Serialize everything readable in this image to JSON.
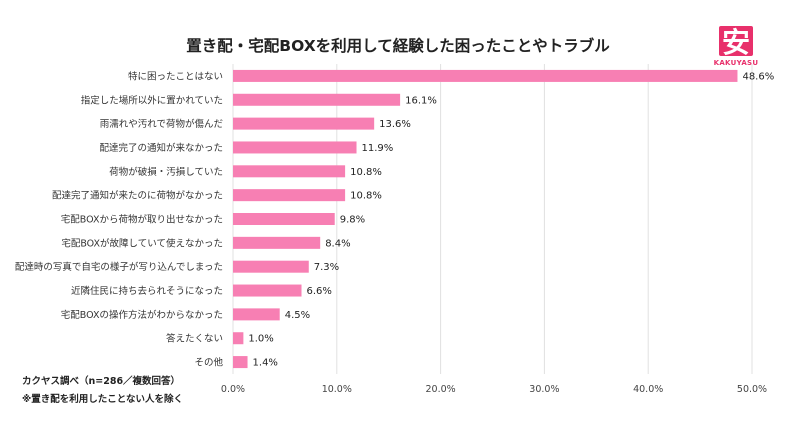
{
  "logo": {
    "kanji": "安",
    "text": "KAKUYASU"
  },
  "footnotes": {
    "source": "カクヤス調べ（n=286／複数回答）",
    "note": "※置き配を利用したことない人を除く"
  },
  "colors": {
    "bar": "#f77fb3",
    "grid": "#e0e0e0",
    "brand": "#e8306b"
  },
  "chart_data": {
    "type": "bar",
    "orientation": "horizontal",
    "title": "置き配・宅配BOXを利用して経験した困ったことやトラブル",
    "xlabel": "",
    "ylabel": "",
    "xlim": [
      0,
      50
    ],
    "grid": true,
    "ticks": [
      "0.0%",
      "10.0%",
      "20.0%",
      "30.0%",
      "40.0%",
      "50.0%"
    ],
    "categories": [
      "特に困ったことはない",
      "指定した場所以外に置かれていた",
      "雨濡れや汚れで荷物が傷んだ",
      "配達完了の通知が来なかった",
      "荷物が破損・汚損していた",
      "配達完了通知が来たのに荷物がなかった",
      "宅配BOXから荷物が取り出せなかった",
      "宅配BOXが故障していて使えなかった",
      "配達時の写真で自宅の様子が写り込んでしまった",
      "近隣住民に持ち去られそうになった",
      "宅配BOXの操作方法がわからなかった",
      "答えたくない",
      "その他"
    ],
    "values": [
      48.6,
      16.1,
      13.6,
      11.9,
      10.8,
      10.8,
      9.8,
      8.4,
      7.3,
      6.6,
      4.5,
      1.0,
      1.4
    ],
    "value_labels": [
      "48.6%",
      "16.1%",
      "13.6%",
      "11.9%",
      "10.8%",
      "10.8%",
      "9.8%",
      "8.4%",
      "7.3%",
      "6.6%",
      "4.5%",
      "1.0%",
      "1.4%"
    ]
  }
}
